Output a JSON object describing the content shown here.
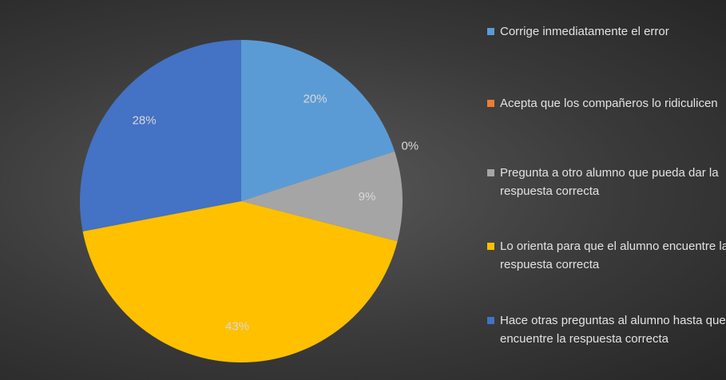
{
  "chart_data": {
    "type": "pie",
    "categories": [
      "Corrige inmediatamente el error",
      "Acepta que los compañeros lo ridiculicen",
      "Pregunta a otro alumno que pueda dar la respuesta correcta",
      "Lo orienta para que el alumno encuentre la respuesta correcta",
      "Hace otras preguntas al alumno hasta que encuentre la respuesta correcta"
    ],
    "values": [
      20,
      0,
      9,
      43,
      28
    ],
    "value_labels": [
      "20%",
      "0%",
      "9%",
      "43%",
      "28%"
    ],
    "colors": [
      "#5b9bd5",
      "#ed7d31",
      "#a5a5a5",
      "#ffc000",
      "#4472c4"
    ],
    "legend": "right"
  }
}
